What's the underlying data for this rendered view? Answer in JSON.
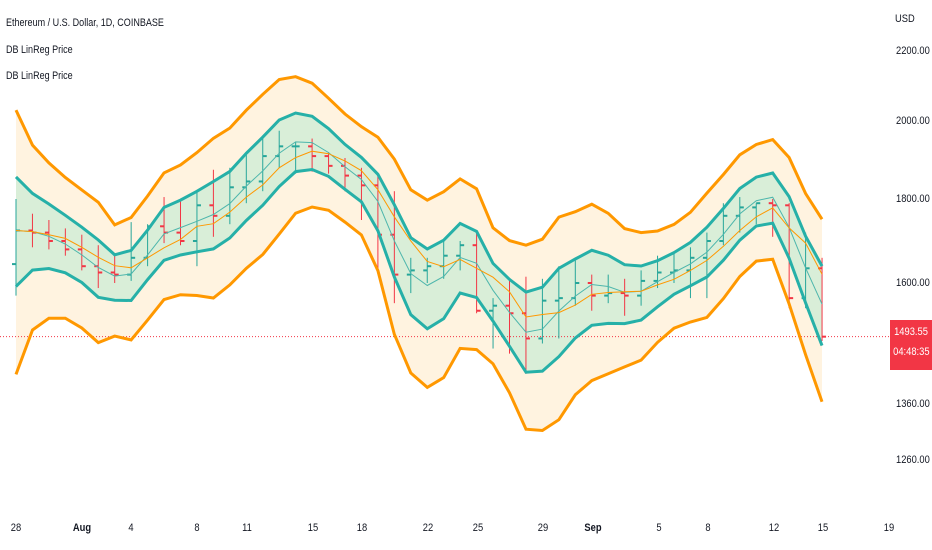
{
  "header": {
    "symbol_title": "Ethereum / U.S. Dollar, 1D, COINBASE",
    "indicator_1": "DB LinReg Price",
    "indicator_2": "DB LinReg Price"
  },
  "price_scale": {
    "currency": "USD",
    "ticks": [
      "2200.00",
      "2000.00",
      "1800.00",
      "1600.00",
      "1360.00",
      "1260.00"
    ],
    "last_price": "1493.55",
    "countdown": "04:48:35"
  },
  "time_scale": {
    "ticks": [
      {
        "label": "28",
        "bold": false
      },
      {
        "label": "Aug",
        "bold": true
      },
      {
        "label": "4",
        "bold": false
      },
      {
        "label": "8",
        "bold": false
      },
      {
        "label": "11",
        "bold": false
      },
      {
        "label": "15",
        "bold": false
      },
      {
        "label": "18",
        "bold": false
      },
      {
        "label": "22",
        "bold": false
      },
      {
        "label": "25",
        "bold": false
      },
      {
        "label": "29",
        "bold": false
      },
      {
        "label": "Sep",
        "bold": true
      },
      {
        "label": "5",
        "bold": false
      },
      {
        "label": "8",
        "bold": false
      },
      {
        "label": "12",
        "bold": false
      },
      {
        "label": "15",
        "bold": false
      },
      {
        "label": "19",
        "bold": false
      }
    ]
  },
  "colors": {
    "up": "#26a69a",
    "down": "#f23645",
    "outer_band": "#ff9800",
    "outer_fill": "#fff3e0",
    "inner_band": "#26b0a8",
    "inner_fill": "#d9eed8",
    "mid_line": "#4db6ac",
    "price_line": "#ff9800",
    "last_price_line": "#f23645"
  },
  "chart_data": {
    "type": "candlestick",
    "x": [
      "Jul 28",
      "Jul 29",
      "Jul 30",
      "Jul 31",
      "Aug 1",
      "Aug 2",
      "Aug 3",
      "Aug 4",
      "Aug 5",
      "Aug 6",
      "Aug 7",
      "Aug 8",
      "Aug 9",
      "Aug 10",
      "Aug 11",
      "Aug 12",
      "Aug 13",
      "Aug 14",
      "Aug 15",
      "Aug 16",
      "Aug 17",
      "Aug 18",
      "Aug 19",
      "Aug 20",
      "Aug 21",
      "Aug 22",
      "Aug 23",
      "Aug 24",
      "Aug 25",
      "Aug 26",
      "Aug 27",
      "Aug 28",
      "Aug 29",
      "Aug 30",
      "Aug 31",
      "Sep 1",
      "Sep 2",
      "Sep 3",
      "Sep 4",
      "Sep 5",
      "Sep 6",
      "Sep 7",
      "Sep 8",
      "Sep 9",
      "Sep 10",
      "Sep 11",
      "Sep 12",
      "Sep 13",
      "Sep 14",
      "Sep 15"
    ],
    "series": [
      {
        "name": "Open",
        "values": [
          1645,
          1725,
          1720,
          1700,
          1680,
          1640,
          1625,
          1620,
          1660,
          1735,
          1720,
          1700,
          1785,
          1760,
          1830,
          1845,
          1910,
          1935,
          1935,
          1910,
          1885,
          1860,
          1835,
          1715,
          1620,
          1630,
          1640,
          1665,
          1690,
          1545,
          1555,
          1540,
          1490,
          1565,
          1570,
          1600,
          1575,
          1580,
          1575,
          1605,
          1625,
          1630,
          1660,
          1700,
          1760,
          1780,
          1790,
          1785,
          1570,
          1635
        ]
      },
      {
        "name": "High",
        "values": [
          1800,
          1765,
          1750,
          1730,
          1715,
          1690,
          1665,
          1745,
          1740,
          1805,
          1800,
          1820,
          1875,
          1880,
          1915,
          1960,
          1975,
          1945,
          1955,
          1920,
          1905,
          1880,
          1860,
          1820,
          1660,
          1660,
          1700,
          1700,
          1720,
          1570,
          1605,
          1615,
          1610,
          1640,
          1655,
          1620,
          1620,
          1610,
          1630,
          1665,
          1670,
          1685,
          1720,
          1790,
          1805,
          1790,
          1800,
          1790,
          1720,
          1660
        ]
      },
      {
        "name": "Low",
        "values": [
          1575,
          1685,
          1680,
          1665,
          1630,
          1590,
          1600,
          1605,
          1640,
          1695,
          1690,
          1640,
          1710,
          1740,
          1790,
          1820,
          1880,
          1865,
          1870,
          1865,
          1820,
          1750,
          1625,
          1560,
          1580,
          1600,
          1610,
          1630,
          1540,
          1470,
          1460,
          1420,
          1480,
          1490,
          1555,
          1545,
          1560,
          1535,
          1555,
          1590,
          1600,
          1570,
          1570,
          1690,
          1720,
          1740,
          1710,
          1550,
          1550,
          1485
        ]
      },
      {
        "name": "Close",
        "values": [
          1725,
          1720,
          1700,
          1680,
          1640,
          1625,
          1620,
          1660,
          1735,
          1720,
          1700,
          1785,
          1760,
          1830,
          1845,
          1910,
          1935,
          1935,
          1910,
          1885,
          1860,
          1835,
          1715,
          1620,
          1630,
          1640,
          1665,
          1690,
          1545,
          1555,
          1540,
          1490,
          1565,
          1570,
          1600,
          1575,
          1580,
          1575,
          1605,
          1625,
          1630,
          1660,
          1700,
          1760,
          1780,
          1790,
          1785,
          1570,
          1635,
          1493.55
        ]
      }
    ],
    "ylabel": "USD",
    "ylim": [
      1275,
      2240
    ]
  }
}
